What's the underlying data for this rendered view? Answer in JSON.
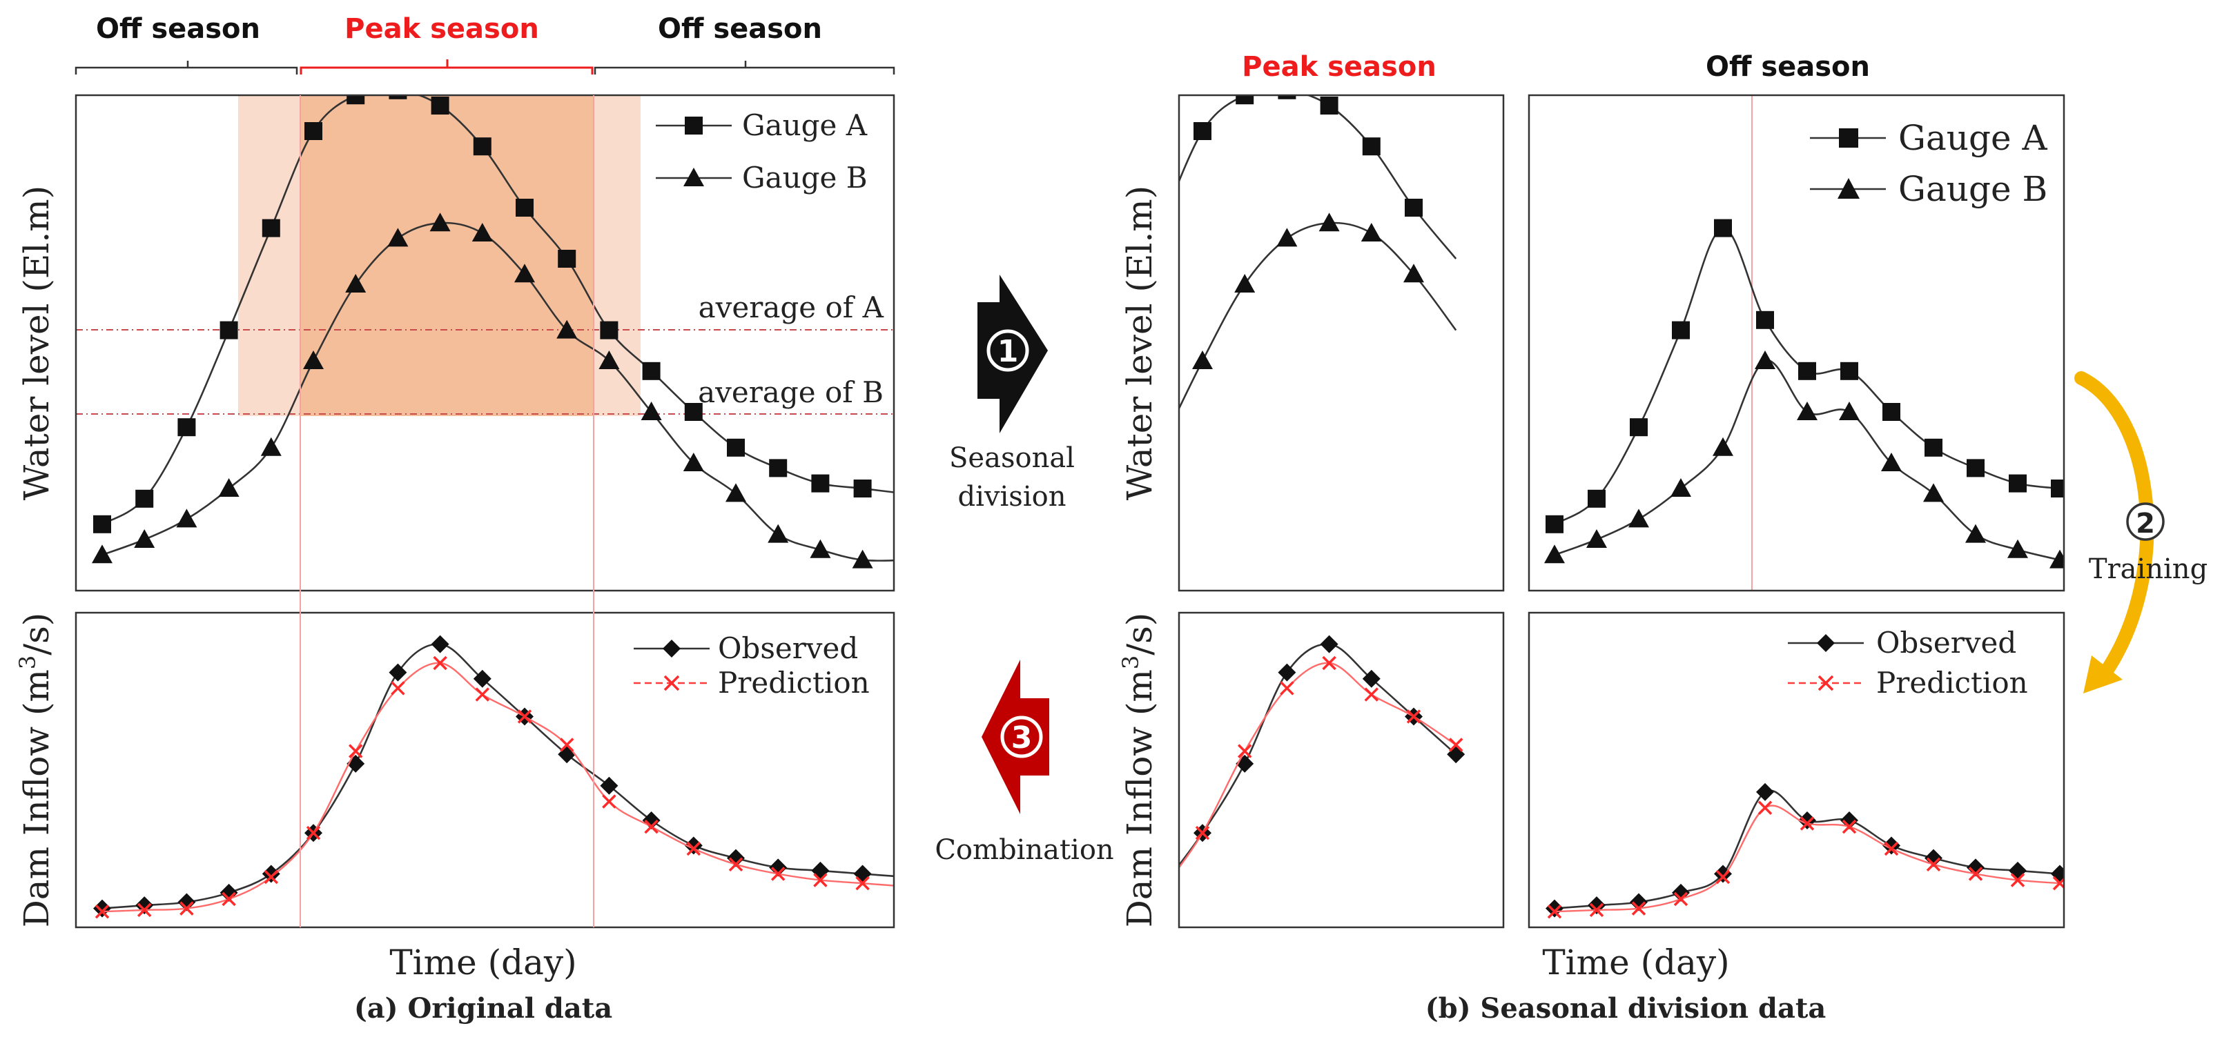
{
  "figure": {
    "left_panel": {
      "season_bar": {
        "off_left": "Off season",
        "peak": "Peak season",
        "off_right": "Off season"
      },
      "water_chart": {
        "ylabel": "Water level (El.m)",
        "legend_a": "Gauge A",
        "legend_b": "Gauge B",
        "avg_a_label": "average of A",
        "avg_b_label": "average of B"
      },
      "inflow_chart": {
        "ylabel_prefix": "Dam Inflow (m",
        "ylabel_sup": "3",
        "ylabel_suffix": "/s)",
        "legend_obs": "Observed",
        "legend_pred": "Prediction"
      },
      "xlabel": "Time (day)",
      "caption": "(a) Original data"
    },
    "right_panel": {
      "peak_label": "Peak season",
      "off_label": "Off season",
      "water_chart": {
        "ylabel": "Water level (El.m)",
        "legend_a": "Gauge A",
        "legend_b": "Gauge B"
      },
      "inflow_chart": {
        "ylabel_prefix": "Dam Inflow (m",
        "ylabel_sup": "3",
        "ylabel_suffix": "/s)",
        "legend_obs": "Observed",
        "legend_pred": "Prediction"
      },
      "xlabel": "Time (day)",
      "caption": "(b) Seasonal division data"
    },
    "steps": {
      "step1_num": "1",
      "step1_label_line1": "Seasonal",
      "step1_label_line2": "division",
      "step2_num": "2",
      "step2_label": "Training",
      "step3_num": "3",
      "step3_label": "Combination"
    },
    "colors": {
      "peak_red": "#ee1c1c",
      "shade_dark": "#f2b48a",
      "shade_light": "#f9dccb",
      "arrow_black": "#111111",
      "arrow_red": "#c00000",
      "arrow_gold": "#f5b400",
      "prediction_red": "#ff3b3b",
      "line_black": "#333333"
    }
  },
  "chart_data": {
    "type": "line",
    "note": "Schematic series in relative units (0 = bottom, 1 = top of each panel); x is day index 0-19.",
    "water_level": {
      "x": [
        0,
        1,
        2,
        3,
        4,
        5,
        6,
        7,
        8,
        9,
        10,
        11,
        12,
        13,
        14,
        15,
        16,
        17,
        18,
        19
      ],
      "series": [
        {
          "name": "Gauge A",
          "marker": "square",
          "values": [
            0.13,
            0.18,
            0.32,
            0.51,
            0.71,
            0.9,
            0.97,
            0.98,
            0.95,
            0.87,
            0.75,
            0.65,
            0.51,
            0.43,
            0.35,
            0.28,
            0.24,
            0.21,
            0.2,
            0.19
          ]
        },
        {
          "name": "Gauge B",
          "marker": "triangle",
          "values": [
            0.07,
            0.1,
            0.14,
            0.2,
            0.28,
            0.45,
            0.6,
            0.69,
            0.72,
            0.7,
            0.62,
            0.51,
            0.45,
            0.35,
            0.25,
            0.19,
            0.11,
            0.08,
            0.06,
            0.06
          ]
        }
      ],
      "reference_lines": [
        {
          "name": "average of A",
          "value": 0.52
        },
        {
          "name": "average of B",
          "value": 0.35
        }
      ],
      "peak_season_x_range": [
        5,
        11
      ]
    },
    "dam_inflow": {
      "x": [
        0,
        1,
        2,
        3,
        4,
        5,
        6,
        7,
        8,
        9,
        10,
        11,
        12,
        13,
        14,
        15,
        16,
        17,
        18,
        19
      ],
      "series": [
        {
          "name": "Observed",
          "marker": "diamond",
          "values": [
            0.06,
            0.07,
            0.08,
            0.11,
            0.17,
            0.3,
            0.52,
            0.81,
            0.9,
            0.79,
            0.67,
            0.55,
            0.45,
            0.34,
            0.26,
            0.22,
            0.19,
            0.18,
            0.17,
            0.16
          ]
        },
        {
          "name": "Prediction",
          "marker": "x",
          "values": [
            0.05,
            0.055,
            0.06,
            0.09,
            0.16,
            0.3,
            0.56,
            0.76,
            0.84,
            0.74,
            0.67,
            0.58,
            0.4,
            0.32,
            0.25,
            0.2,
            0.17,
            0.15,
            0.14,
            0.13
          ]
        }
      ]
    }
  }
}
